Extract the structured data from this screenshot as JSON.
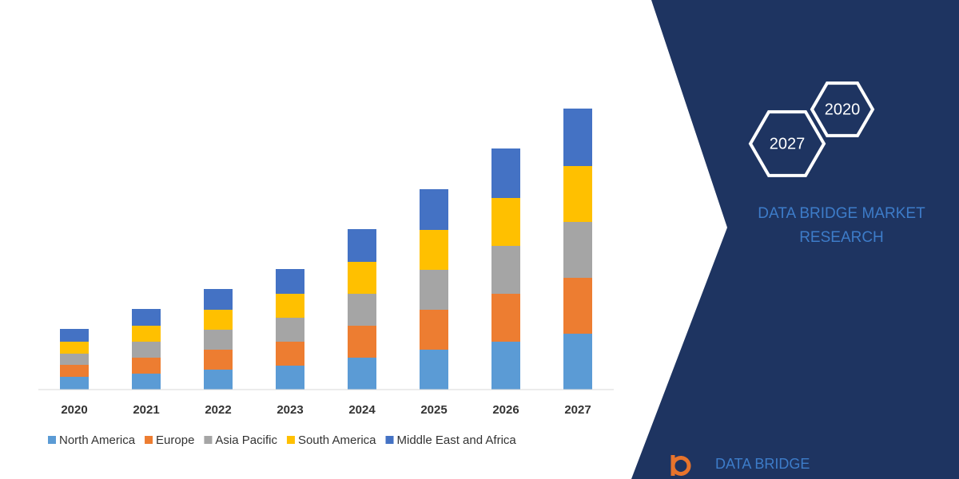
{
  "chart_data": {
    "type": "stacked_bar",
    "categories": [
      "2020",
      "2021",
      "2022",
      "2023",
      "2024",
      "2025",
      "2026",
      "2027"
    ],
    "series": [
      {
        "name": "North America",
        "color": "#5b9bd5",
        "values": [
          16,
          20,
          25,
          30,
          40,
          50,
          60,
          70
        ]
      },
      {
        "name": "Europe",
        "color": "#ed7d31",
        "values": [
          15,
          20,
          25,
          30,
          40,
          50,
          60,
          70
        ]
      },
      {
        "name": "Asia Pacific",
        "color": "#a5a5a5",
        "values": [
          14,
          20,
          25,
          30,
          40,
          50,
          60,
          70
        ]
      },
      {
        "name": "South America",
        "color": "#ffc000",
        "values": [
          15,
          20,
          25,
          30,
          40,
          50,
          60,
          70
        ]
      },
      {
        "name": "Middle East and Africa",
        "color": "#4472c4",
        "values": [
          16,
          21,
          26,
          31,
          41,
          51,
          62,
          72
        ]
      }
    ]
  },
  "panel": {
    "hexagons": [
      "2020",
      "2027"
    ],
    "brand_lines": [
      "DATA BRIDGE MARKET",
      "RESEARCH"
    ],
    "logo": "DATA BRIDGE"
  }
}
